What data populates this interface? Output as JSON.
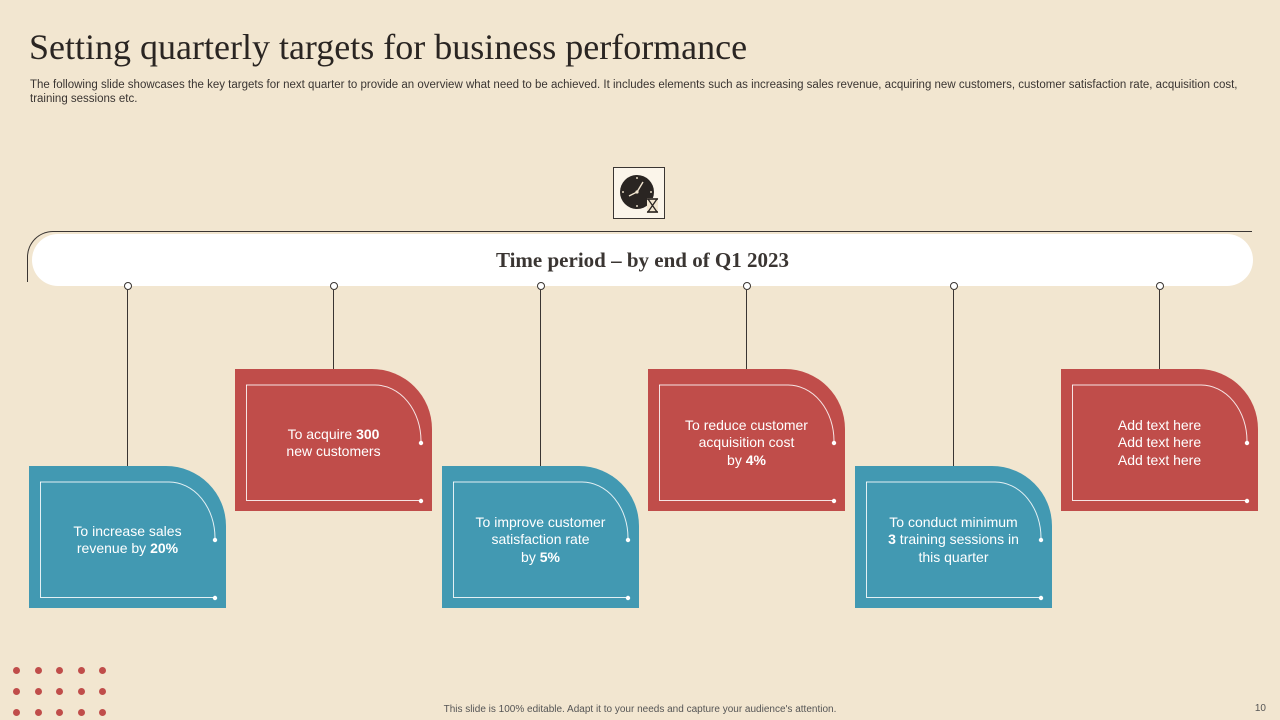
{
  "slide": {
    "title": "Setting quarterly targets for business performance",
    "subtitle": "The following slide showcases the key targets for next quarter to provide an overview what need to  be achieved. It includes elements such as increasing sales revenue, acquiring new customers, customer satisfaction rate, acquisition cost, training sessions etc.",
    "time_period": "Time period – by end of Q1 2023",
    "icon": "clock-hourglass-icon",
    "footer": "This slide is 100% editable.  Adapt it to your needs and capture your audience's attention.",
    "page_number": "10"
  },
  "colors": {
    "background": "#f2e6d0",
    "teal": "#4299b2",
    "red": "#c04d4a",
    "text_dark": "#2a2522"
  },
  "targets": [
    {
      "color": "teal",
      "lines": [
        [
          "To increase sales"
        ],
        [
          "revenue by ",
          "20%"
        ]
      ]
    },
    {
      "color": "red",
      "lines": [
        [
          "To acquire ",
          "300"
        ],
        [
          "new customers"
        ]
      ]
    },
    {
      "color": "teal",
      "lines": [
        [
          "To improve customer"
        ],
        [
          "satisfaction rate"
        ],
        [
          "by ",
          "5%"
        ]
      ]
    },
    {
      "color": "red",
      "lines": [
        [
          "To reduce customer"
        ],
        [
          "acquisition cost"
        ],
        [
          "by ",
          "4%"
        ]
      ]
    },
    {
      "color": "teal",
      "lines": [
        [
          "To conduct minimum"
        ],
        [
          "",
          "3",
          " training sessions in"
        ],
        [
          "this quarter"
        ]
      ]
    },
    {
      "color": "red",
      "lines": [
        [
          "Add text here"
        ],
        [
          "Add text here"
        ],
        [
          "Add text here"
        ]
      ]
    }
  ]
}
